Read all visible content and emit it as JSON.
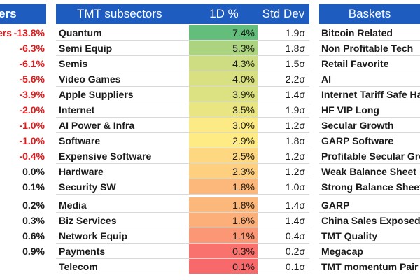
{
  "colors": {
    "header_bg": "#1f5cbf",
    "header_text": "#ffffff",
    "negative": "#e31a1c",
    "text": "#1a1a1a",
    "heat_high": "#63be7b",
    "heat_mid": "#ffeb84",
    "heat_low": "#f8696b"
  },
  "left_panel": {
    "header": "ers",
    "items": [
      {
        "label": "ers",
        "value": "-13.8%"
      },
      {
        "value": "-6.3%"
      },
      {
        "value": "-6.1%"
      },
      {
        "value": "-5.6%"
      },
      {
        "value": "-3.9%"
      },
      {
        "value": "-2.0%"
      },
      {
        "value": "-1.0%"
      },
      {
        "value": "-1.0%"
      },
      {
        "value": "-0.4%"
      },
      {
        "value": "0.0%"
      },
      {
        "value": "0.1%"
      },
      {
        "value": "0.2%"
      },
      {
        "value": "0.3%"
      },
      {
        "value": "0.6%"
      },
      {
        "value": "0.9%"
      }
    ]
  },
  "tmt_table": {
    "headers": {
      "name": "TMT subsectors",
      "change": "1D %",
      "std": "Std Dev"
    },
    "rows": [
      {
        "name": "Quantum",
        "change": "7.4%",
        "change_value": 7.4,
        "std": "1.9σ"
      },
      {
        "name": "Semi Equip",
        "change": "5.3%",
        "change_value": 5.3,
        "std": "1.8σ"
      },
      {
        "name": "Semis",
        "change": "4.3%",
        "change_value": 4.3,
        "std": "1.5σ"
      },
      {
        "name": "Video Games",
        "change": "4.0%",
        "change_value": 4.0,
        "std": "2.2σ"
      },
      {
        "name": "Apple Suppliers",
        "change": "3.9%",
        "change_value": 3.9,
        "std": "1.4σ"
      },
      {
        "name": "Internet",
        "change": "3.5%",
        "change_value": 3.5,
        "std": "1.9σ"
      },
      {
        "name": "AI Power & Infra",
        "change": "3.0%",
        "change_value": 3.0,
        "std": "1.2σ"
      },
      {
        "name": "Software",
        "change": "2.9%",
        "change_value": 2.9,
        "std": "1.8σ"
      },
      {
        "name": "Expensive Software",
        "change": "2.5%",
        "change_value": 2.5,
        "std": "1.2σ"
      },
      {
        "name": "Hardware",
        "change": "2.3%",
        "change_value": 2.3,
        "std": "1.2σ"
      },
      {
        "name": "Security SW",
        "change": "1.8%",
        "change_value": 1.8,
        "std": "1.0σ"
      },
      {
        "name": "Media",
        "change": "1.8%",
        "change_value": 1.8,
        "std": "1.4σ"
      },
      {
        "name": "Biz Services",
        "change": "1.6%",
        "change_value": 1.6,
        "std": "1.4σ"
      },
      {
        "name": "Network Equip",
        "change": "1.1%",
        "change_value": 1.1,
        "std": "0.4σ"
      },
      {
        "name": "Payments",
        "change": "0.3%",
        "change_value": 0.3,
        "std": "0.2σ"
      },
      {
        "name": "Telecom",
        "change": "0.1%",
        "change_value": 0.1,
        "std": "0.1σ"
      }
    ]
  },
  "baskets": {
    "header": "Baskets",
    "items": [
      "Bitcoin Related",
      "Non Profitable Tech",
      "Retail Favorite",
      "AI",
      "Internet Tariff Safe Ha",
      "HF VIP Long",
      "Secular Growth",
      "GARP Software",
      "Profitable Secular Gro",
      "Weak Balance Sheet",
      "Strong Balance Sheet",
      "GARP",
      "China Sales Exposed",
      "TMT Quality",
      "Megacap",
      "TMT momentum Pair"
    ]
  }
}
